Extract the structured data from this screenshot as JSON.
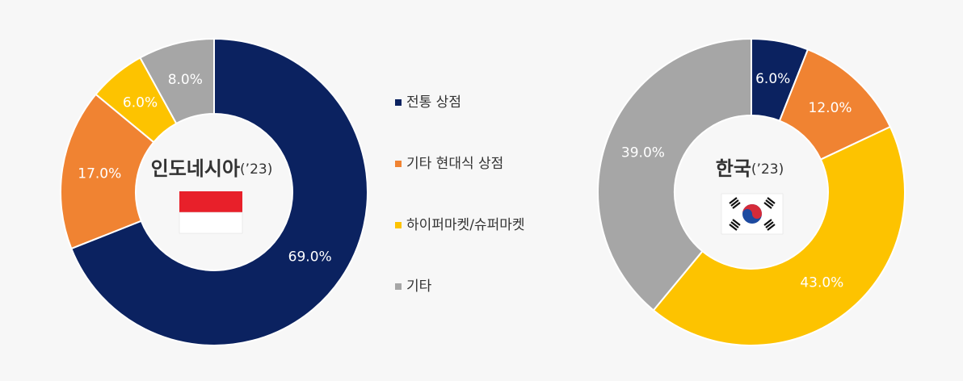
{
  "chart_data": [
    {
      "type": "donut",
      "title": "인도네시아",
      "period": "(’23)",
      "categories": [
        "전통 상점",
        "기타 현대식 상점",
        "하이퍼마켓/슈퍼마켓",
        "기타"
      ],
      "values": [
        69,
        17,
        6,
        8
      ],
      "value_labels": [
        "69.0%",
        "17.0%",
        "6.0%",
        "8.0%"
      ],
      "colors": [
        "#0b2260",
        "#f08332",
        "#fdc300",
        "#a6a6a6"
      ]
    },
    {
      "type": "donut",
      "title": "한국",
      "period": "(’23)",
      "categories": [
        "전통 상점",
        "기타 현대식 상점",
        "하이퍼마켓/슈퍼마켓",
        "기타"
      ],
      "values": [
        6,
        12,
        43,
        39
      ],
      "value_labels": [
        "6.0%",
        "12.0%",
        "43.0%",
        "39.0%"
      ],
      "colors": [
        "#0b2260",
        "#f08332",
        "#fdc300",
        "#a6a6a6"
      ]
    }
  ]
}
